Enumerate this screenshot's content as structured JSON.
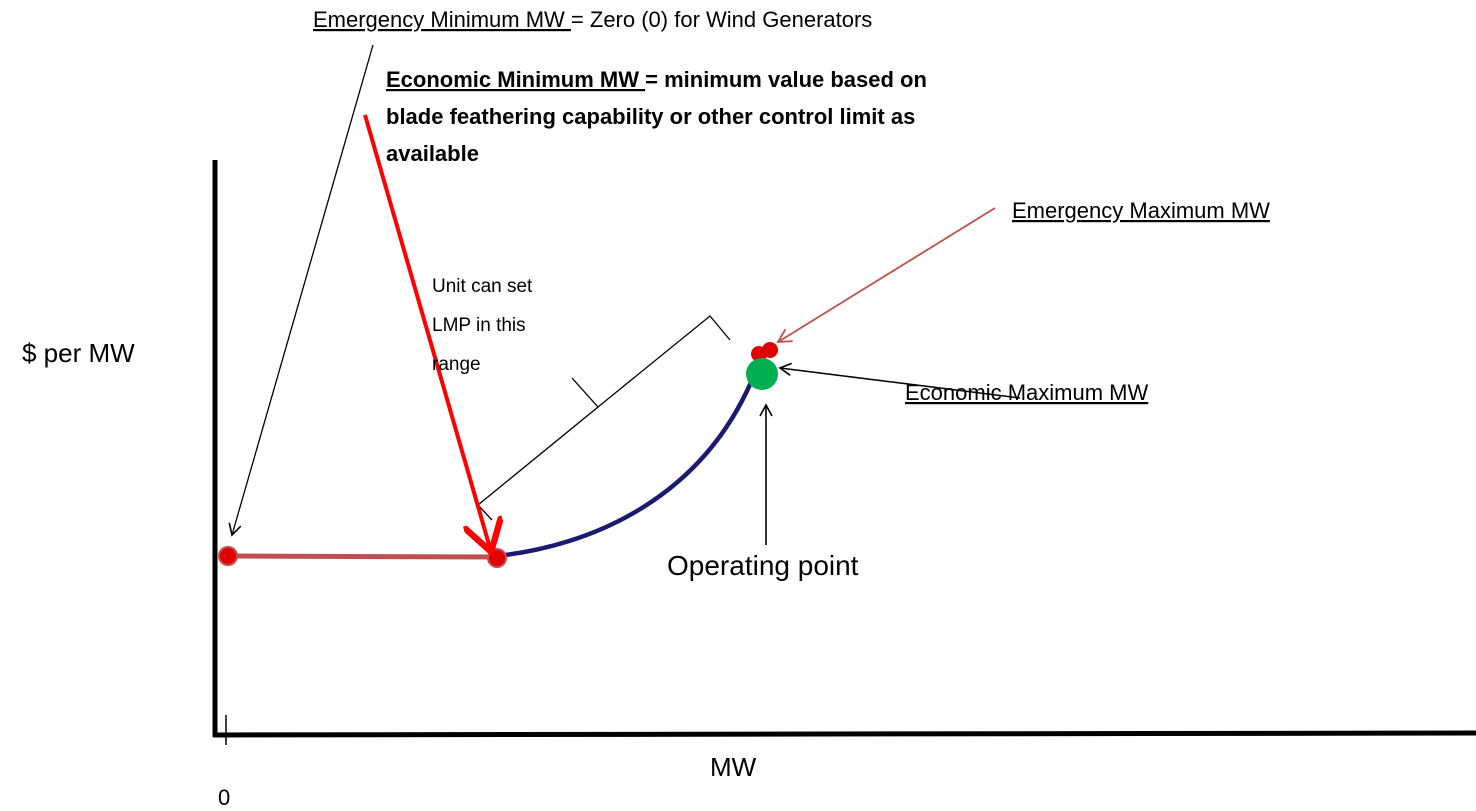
{
  "emergency_minimum": {
    "label": "Emergency Minimum MW ",
    "text": "= Zero (0) for Wind Generators"
  },
  "economic_minimum": {
    "label": "Economic Minimum MW ",
    "lines": [
      "= minimum value based on",
      "blade feathering capability or other control limit as",
      "available"
    ]
  },
  "emergency_maximum": {
    "label": "Emergency Maximum MW"
  },
  "economic_maximum": {
    "label": "Economic Maximum MW"
  },
  "lmp_range": {
    "lines": [
      "Unit can set",
      "LMP in this",
      "range"
    ]
  },
  "operating_point": {
    "label": "Operating point"
  },
  "axes": {
    "y_label": "$ per MW",
    "x_label": "MW",
    "origin": "0"
  }
}
